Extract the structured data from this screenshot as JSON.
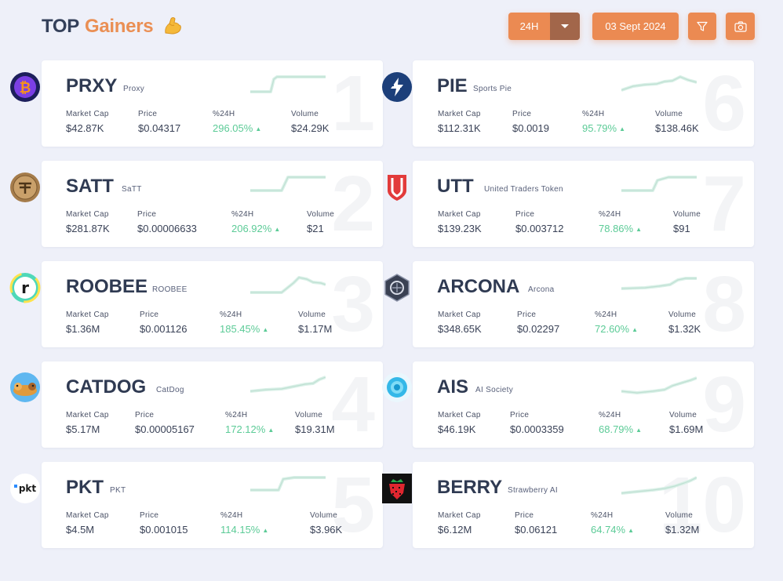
{
  "header": {
    "title_prefix": "TOP",
    "title_accent": "Gainers",
    "emoji_name": "flexed-biceps-icon",
    "period_label": "24H",
    "date_label": "03 Sept 2024",
    "filter_icon": "filter-icon",
    "camera_icon": "camera-icon",
    "accent_color": "#eb8a52"
  },
  "stat_labels": {
    "market_cap": "Market Cap",
    "price": "Price",
    "change": "%24H",
    "volume": "Volume"
  },
  "cards": [
    {
      "rank": "1",
      "symbol": "PRXY",
      "name": "Proxy",
      "market_cap": "$42.87K",
      "price": "$0.04317",
      "change": "296.05%",
      "volume": "$24.29K",
      "logo": "proxy-coin-icon"
    },
    {
      "rank": "2",
      "symbol": "SATT",
      "name": "SaTT",
      "market_cap": "$281.87K",
      "price": "$0.00006633",
      "change": "206.92%",
      "volume": "$21",
      "logo": "satt-coin-icon"
    },
    {
      "rank": "3",
      "symbol": "ROOBEE",
      "name": "ROOBEE",
      "market_cap": "$1.36M",
      "price": "$0.001126",
      "change": "185.45%",
      "volume": "$1.17M",
      "logo": "roobee-icon"
    },
    {
      "rank": "4",
      "symbol": "CATDOG",
      "name": "CatDog",
      "market_cap": "$5.17M",
      "price": "$0.00005167",
      "change": "172.12%",
      "volume": "$19.31M",
      "logo": "catdog-icon"
    },
    {
      "rank": "5",
      "symbol": "PKT",
      "name": "PKT",
      "market_cap": "$4.5M",
      "price": "$0.001015",
      "change": "114.15%",
      "volume": "$3.96K",
      "logo": "pkt-icon",
      "logo_text": "pkt"
    },
    {
      "rank": "6",
      "symbol": "PIE",
      "name": "Sports Pie",
      "market_cap": "$112.31K",
      "price": "$0.0019",
      "change": "95.79%",
      "volume": "$138.46K",
      "logo": "sports-pie-icon"
    },
    {
      "rank": "7",
      "symbol": "UTT",
      "name": "United Traders Token",
      "market_cap": "$139.23K",
      "price": "$0.003712",
      "change": "78.86%",
      "volume": "$91",
      "logo": "utt-shield-icon"
    },
    {
      "rank": "8",
      "symbol": "ARCONA",
      "name": "Arcona",
      "market_cap": "$348.65K",
      "price": "$0.02297",
      "change": "72.60%",
      "volume": "$1.32K",
      "logo": "arcona-icon"
    },
    {
      "rank": "9",
      "symbol": "AIS",
      "name": "AI Society",
      "market_cap": "$46.19K",
      "price": "$0.0003359",
      "change": "68.79%",
      "volume": "$1.69M",
      "logo": "ai-society-icon"
    },
    {
      "rank": "10",
      "symbol": "BERRY",
      "name": "Strawberry AI",
      "market_cap": "$6.12M",
      "price": "$0.06121",
      "change": "64.74%",
      "volume": "$1.32M",
      "logo": "strawberry-icon"
    }
  ]
}
